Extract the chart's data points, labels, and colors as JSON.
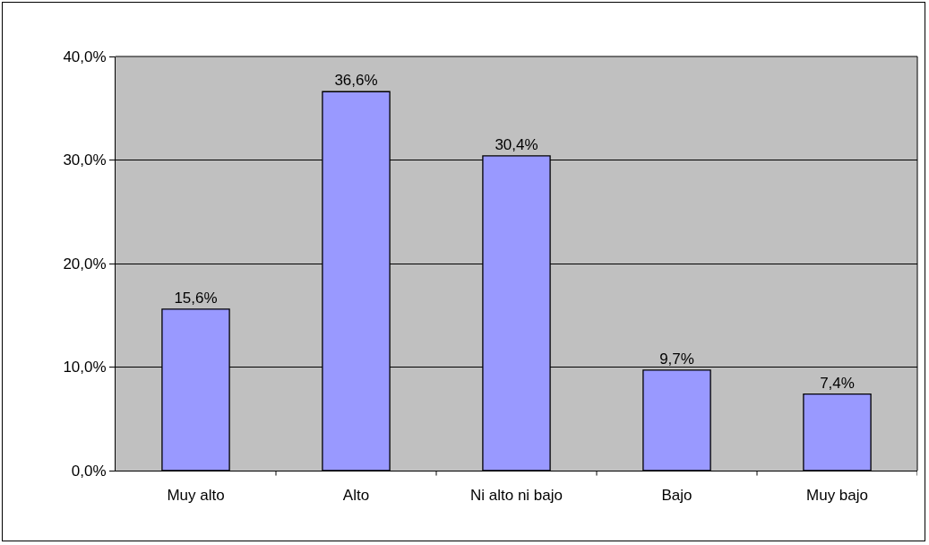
{
  "chart_data": {
    "type": "bar",
    "categories": [
      "Muy alto",
      "Alto",
      "Ni alto ni bajo",
      "Bajo",
      "Muy bajo"
    ],
    "values": [
      15.6,
      36.6,
      30.4,
      9.7,
      7.4
    ],
    "value_labels": [
      "15,6%",
      "36,6%",
      "30,4%",
      "9,7%",
      "7,4%"
    ],
    "color": "#9999ff",
    "ylim": [
      0,
      40
    ],
    "yticks": [
      {
        "value": 0,
        "label": "0,0%"
      },
      {
        "value": 10,
        "label": "10,0%"
      },
      {
        "value": 20,
        "label": "20,0%"
      },
      {
        "value": 30,
        "label": "30,0%"
      },
      {
        "value": 40,
        "label": "40,0%"
      }
    ],
    "grid": "y",
    "legend": false
  }
}
